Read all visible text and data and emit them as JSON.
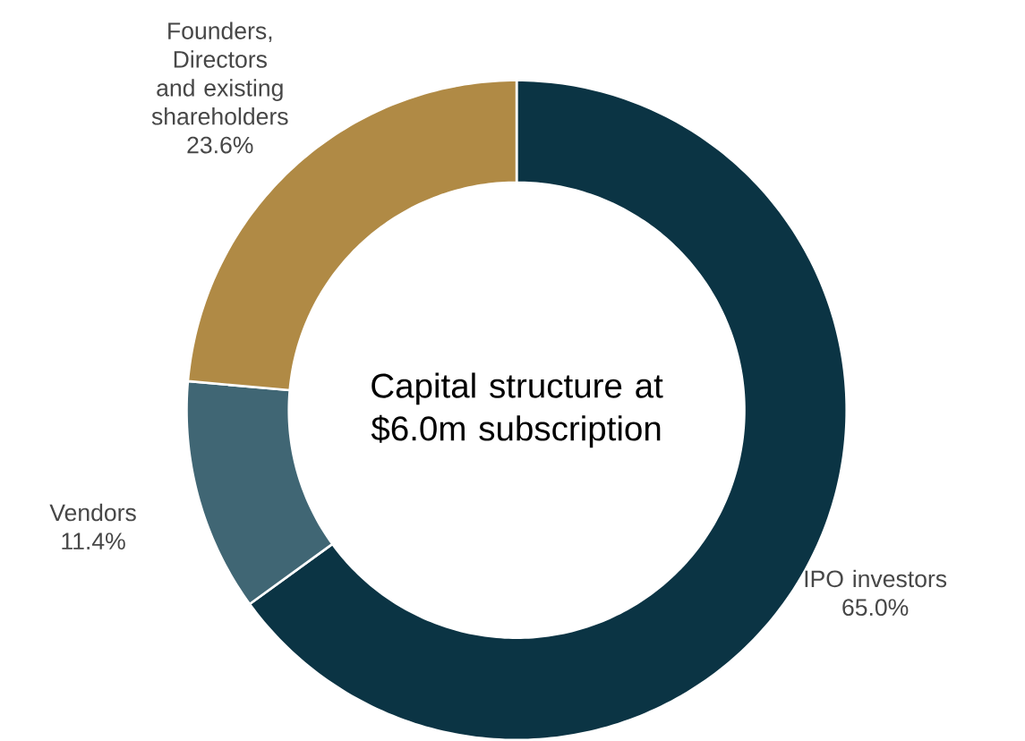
{
  "chart_data": {
    "type": "donut",
    "title": "Capital structure at $6.0m subscription",
    "categories": [
      "IPO investors",
      "Vendors",
      "Founders, Directors and existing shareholders"
    ],
    "values": [
      65.0,
      11.4,
      23.6
    ],
    "colors": [
      "#0b3444",
      "#406674",
      "#b08a45"
    ],
    "value_labels": [
      "65.0%",
      "11.4%",
      "23.6%"
    ]
  }
}
